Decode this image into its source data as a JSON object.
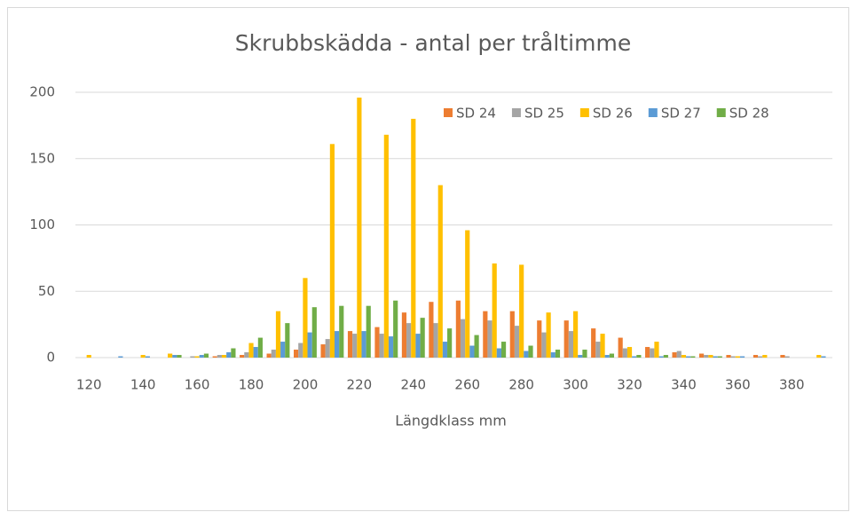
{
  "chart_data": {
    "type": "bar",
    "title": "Skrubbskädda - antal per tråltimme",
    "x_label": "Längdklass mm",
    "categories": [
      120,
      null,
      140,
      null,
      160,
      null,
      180,
      null,
      200,
      null,
      220,
      null,
      240,
      null,
      260,
      null,
      280,
      null,
      300,
      null,
      320,
      null,
      340,
      null,
      360,
      null,
      380,
      null
    ],
    "series": [
      {
        "name": "SD 24",
        "color": "#ed7d31",
        "values": [
          0,
          0,
          0,
          0,
          0,
          1,
          2,
          3,
          6,
          10,
          20,
          23,
          34,
          42,
          43,
          35,
          35,
          28,
          28,
          22,
          15,
          8,
          4,
          3,
          2,
          2,
          2,
          0
        ]
      },
      {
        "name": "SD 25",
        "color": "#a5a5a5",
        "values": [
          0,
          0,
          0,
          0,
          1,
          2,
          4,
          6,
          11,
          14,
          18,
          18,
          26,
          26,
          29,
          28,
          24,
          19,
          20,
          12,
          7,
          7,
          5,
          2,
          1,
          1,
          1,
          0
        ]
      },
      {
        "name": "SD 26",
        "color": "#ffc000",
        "values": [
          2,
          0,
          2,
          3,
          1,
          2,
          11,
          35,
          60,
          161,
          196,
          168,
          180,
          130,
          96,
          71,
          70,
          34,
          35,
          18,
          8,
          12,
          2,
          2,
          1,
          2,
          0,
          2
        ]
      },
      {
        "name": "SD 27",
        "color": "#5b9bd5",
        "values": [
          0,
          1,
          1,
          2,
          2,
          4,
          8,
          12,
          19,
          20,
          20,
          16,
          18,
          12,
          9,
          7,
          5,
          4,
          2,
          2,
          1,
          1,
          1,
          1,
          1,
          0,
          0,
          1
        ]
      },
      {
        "name": "SD 28",
        "color": "#70ad47",
        "values": [
          0,
          0,
          0,
          2,
          3,
          7,
          15,
          26,
          38,
          39,
          39,
          43,
          30,
          22,
          17,
          12,
          9,
          6,
          6,
          3,
          2,
          2,
          1,
          1,
          0,
          0,
          0,
          0
        ]
      }
    ],
    "ylim": [
      0,
      200
    ],
    "yticks": [
      0,
      50,
      100,
      150,
      200
    ],
    "grid": true,
    "legend": "top-right"
  }
}
